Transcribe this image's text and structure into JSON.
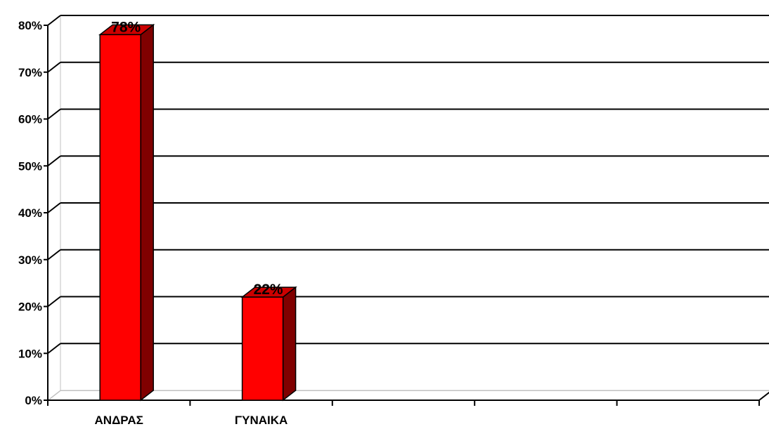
{
  "chart_data": {
    "type": "bar",
    "categories": [
      "ΑΝΔΡΑΣ",
      "ΓΥΝΑΙΚΑ",
      "",
      "",
      ""
    ],
    "values": [
      78,
      22,
      null,
      null,
      null
    ],
    "data_labels": [
      "78%",
      "22%",
      "",
      "",
      ""
    ],
    "ylim": [
      0,
      80
    ],
    "yticks": [
      0,
      10,
      20,
      30,
      40,
      50,
      60,
      70,
      80
    ],
    "ytick_labels": [
      "0%",
      "10%",
      "20%",
      "30%",
      "40%",
      "50%",
      "60%",
      "70%",
      "80%"
    ],
    "grid": true,
    "three_d": true,
    "colors": {
      "bar_front": "#ff0000",
      "bar_side": "#800000",
      "bar_top": "#cc0000",
      "grid": "#000000",
      "axis": "#000000",
      "floor": "#c0c0c0"
    }
  }
}
